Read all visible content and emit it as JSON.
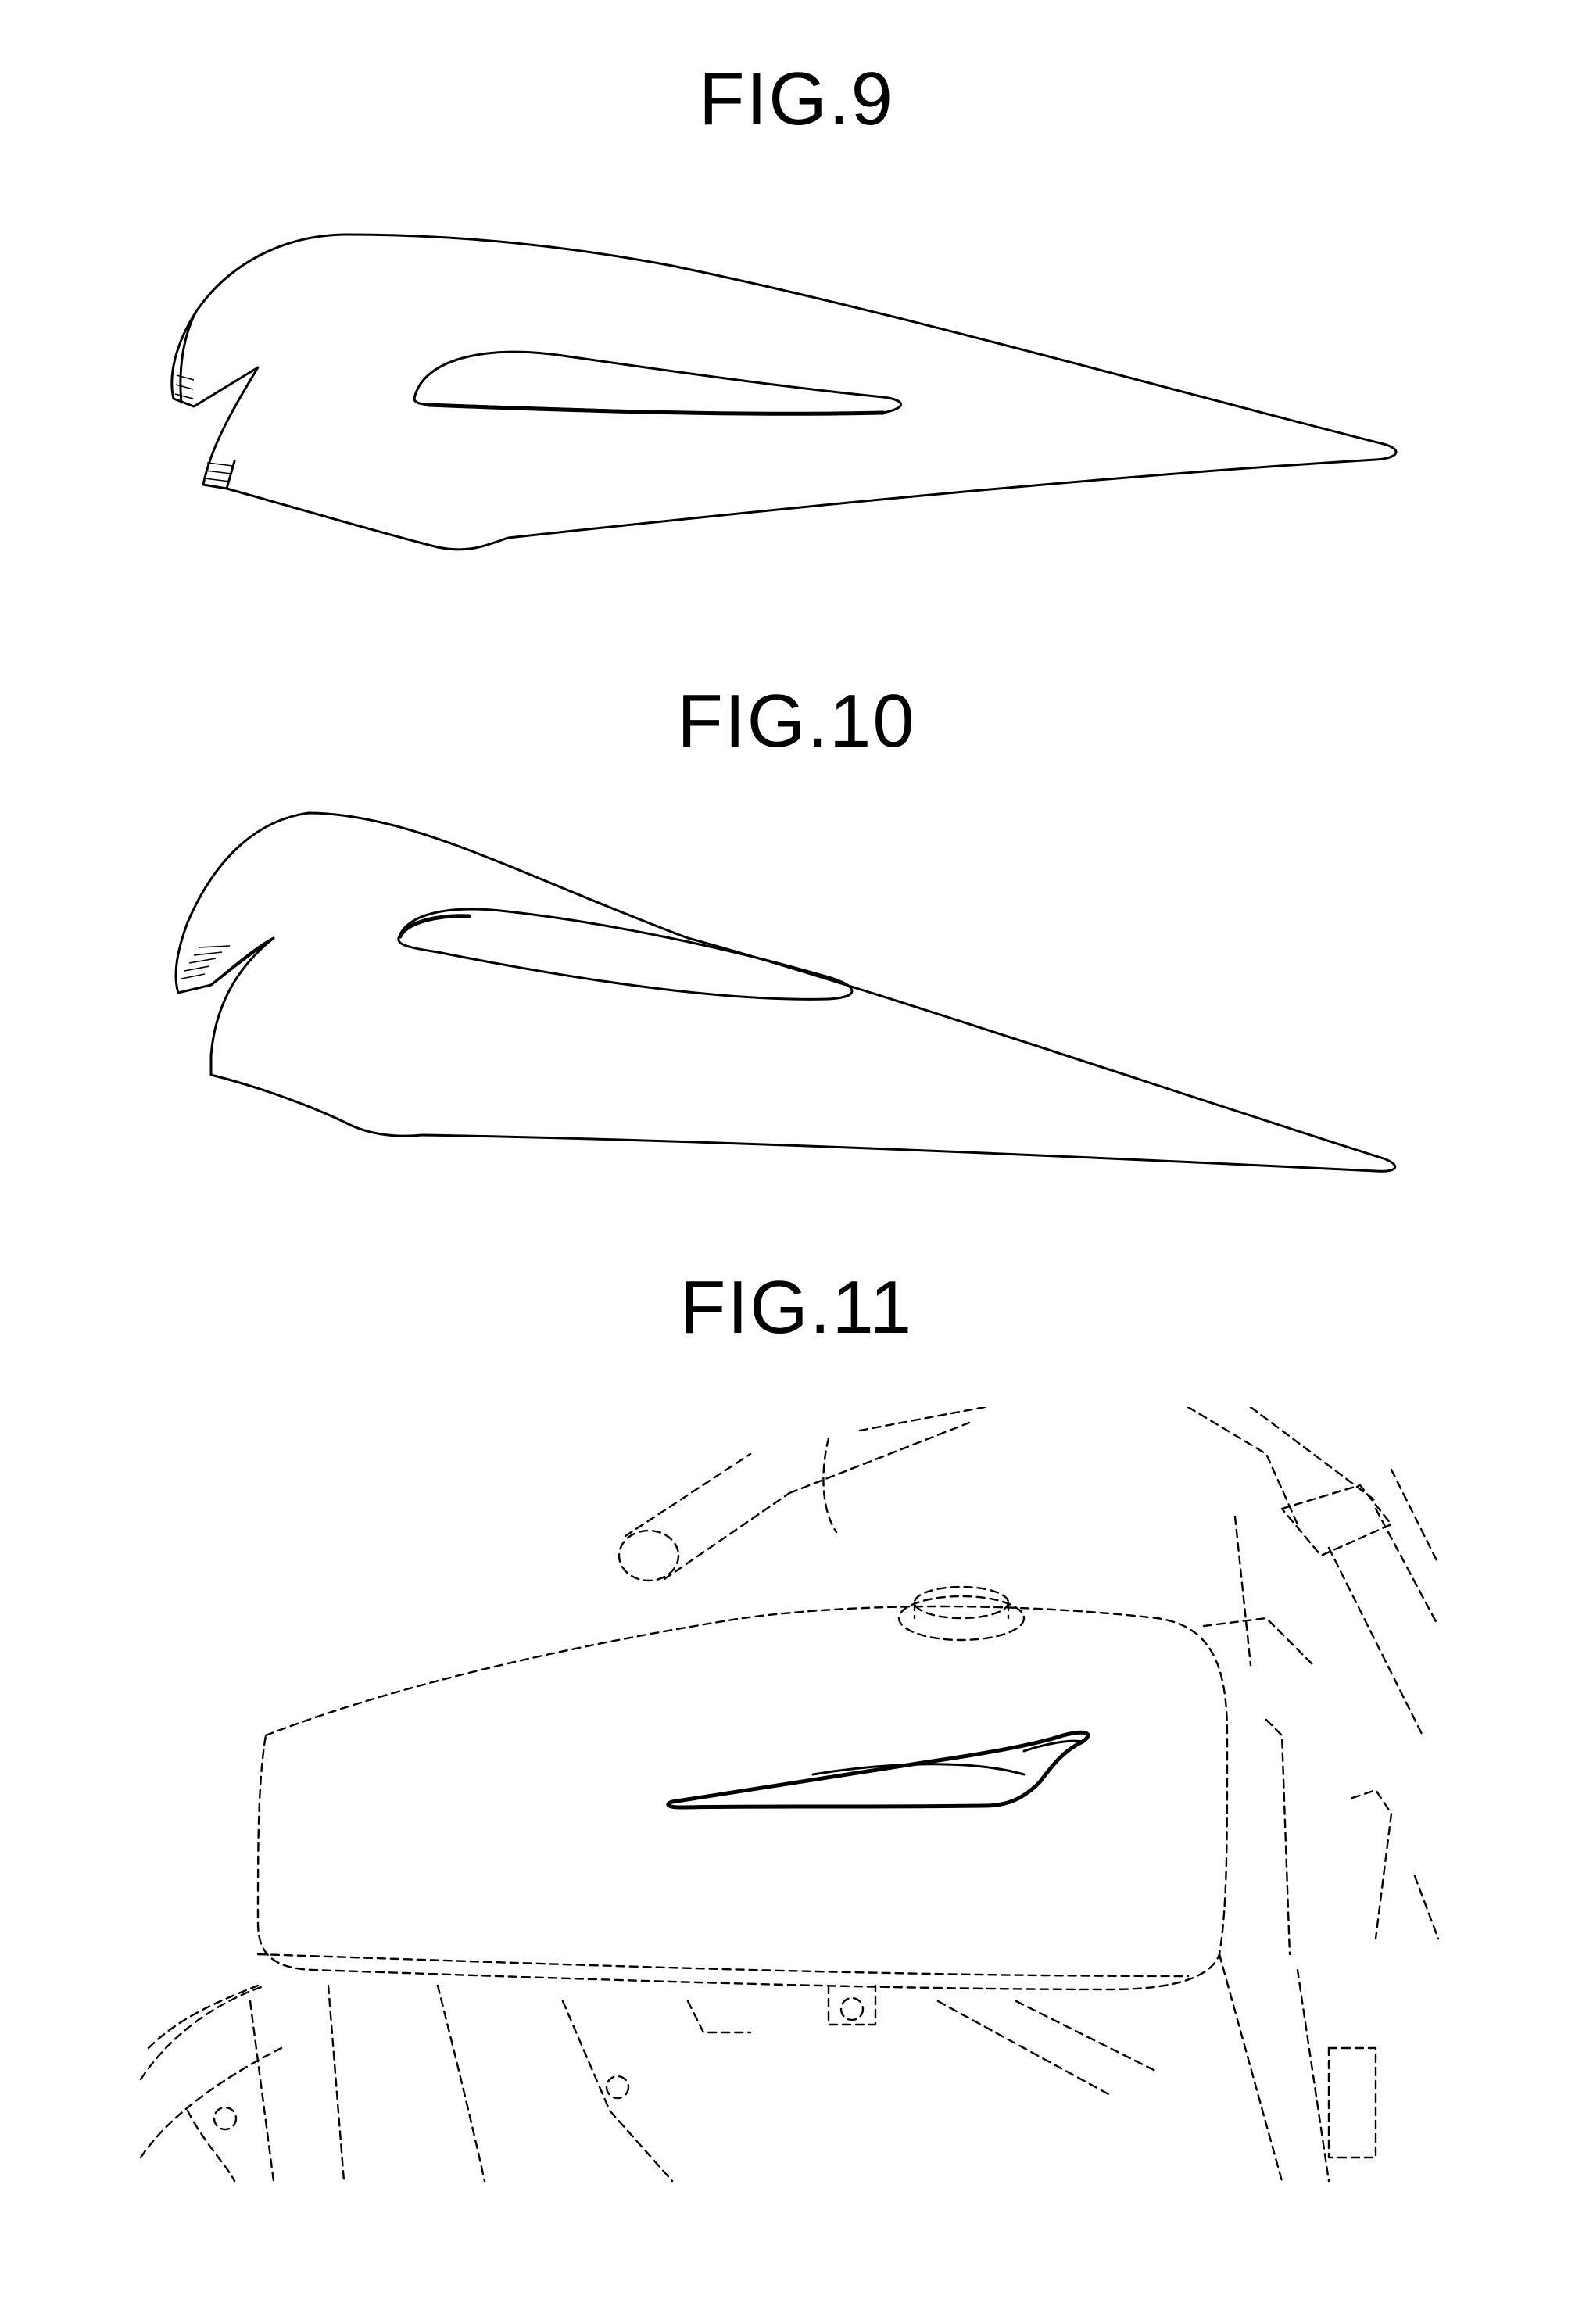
{
  "figures": [
    {
      "label": "FIG.9",
      "subject": "tank emblem, side view, variant A"
    },
    {
      "label": "FIG.10",
      "subject": "tank emblem, side view, variant B"
    },
    {
      "label": "FIG.11",
      "subject": "emblem mounted on motorcycle fuel tank"
    }
  ]
}
